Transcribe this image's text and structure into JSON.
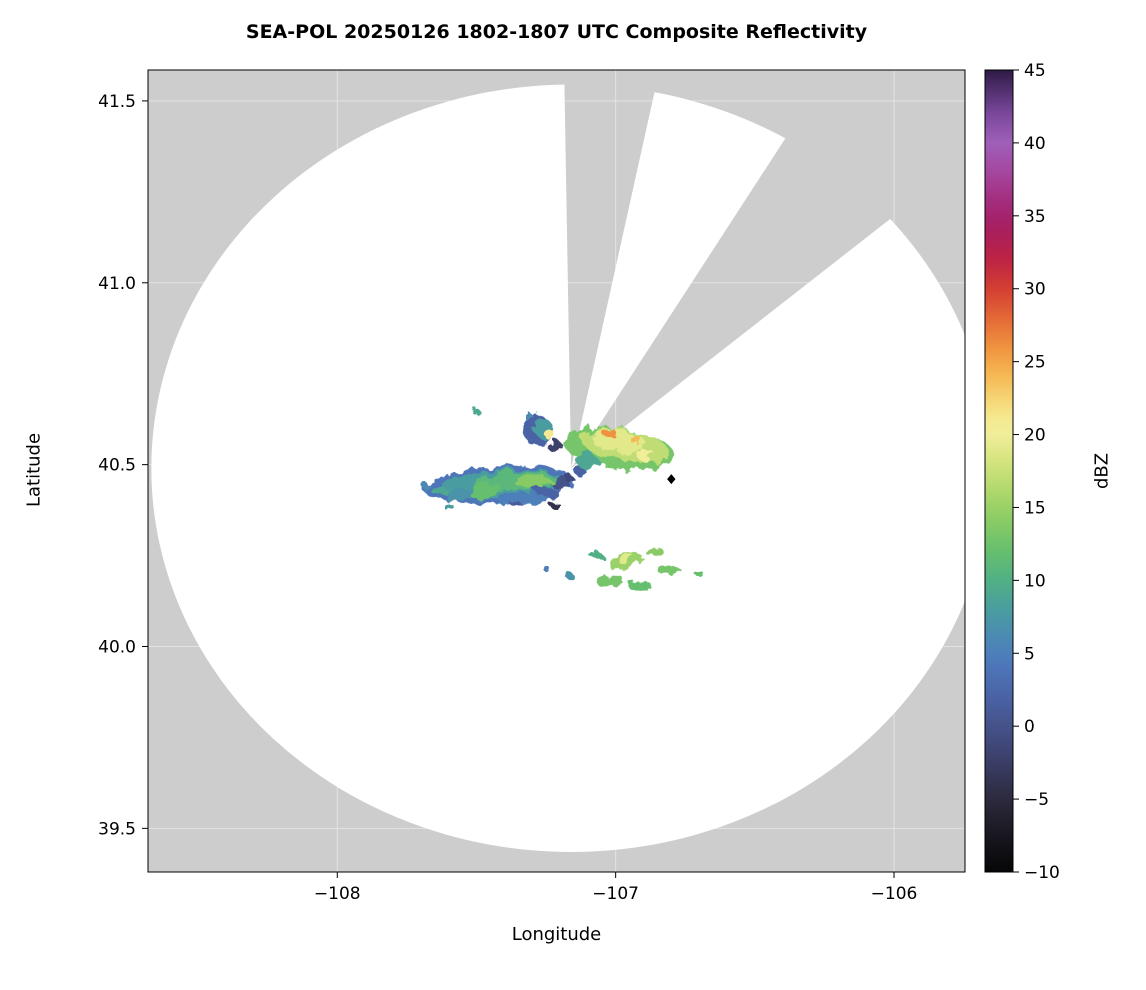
{
  "figure": {
    "title": "SEA-POL 20250126 1802-1807 UTC Composite Reflectivity",
    "xlabel": "Longitude",
    "ylabel": "Latitude",
    "colorbar_label": "dBZ"
  },
  "chart_data": {
    "type": "heatmap",
    "title": "SEA-POL 20250126 1802-1807 UTC Composite Reflectivity",
    "xlabel": "Longitude",
    "ylabel": "Latitude",
    "xlim": [
      -108.68,
      -105.745
    ],
    "ylim": [
      39.38,
      41.585
    ],
    "xticks": [
      -108,
      -107,
      -106
    ],
    "yticks": [
      39.5,
      40.0,
      40.5,
      41.0,
      41.5
    ],
    "grid": true,
    "colors": {
      "outside_range": "#cdcdcd",
      "coverage": "#ffffff",
      "frame": "#000000",
      "gridline": "#ffffff"
    },
    "colorbar": {
      "label": "dBZ",
      "min": -10,
      "max": 45,
      "ticks": [
        -10,
        -5,
        0,
        5,
        10,
        15,
        20,
        25,
        30,
        35,
        40,
        45
      ],
      "stops": [
        [
          -10,
          "#060607"
        ],
        [
          -8,
          "#15131a"
        ],
        [
          -6,
          "#252230"
        ],
        [
          -5,
          "#2c2a3e"
        ],
        [
          -4,
          "#32324e"
        ],
        [
          -2,
          "#3d426d"
        ],
        [
          0,
          "#45528a"
        ],
        [
          2,
          "#4a63a5"
        ],
        [
          4,
          "#4d75b8"
        ],
        [
          5,
          "#4d7fba"
        ],
        [
          6,
          "#4b89b4"
        ],
        [
          8,
          "#4a9da0"
        ],
        [
          10,
          "#51b085"
        ],
        [
          12,
          "#66bf6e"
        ],
        [
          14,
          "#88cb66"
        ],
        [
          15,
          "#9ad167"
        ],
        [
          16,
          "#add76b"
        ],
        [
          18,
          "#d2e37c"
        ],
        [
          20,
          "#f0ee9a"
        ],
        [
          21,
          "#f5ea93"
        ],
        [
          22,
          "#f6dc7d"
        ],
        [
          24,
          "#f5b955"
        ],
        [
          25,
          "#f3a648"
        ],
        [
          26,
          "#ef923f"
        ],
        [
          28,
          "#e46837"
        ],
        [
          30,
          "#d33f33"
        ],
        [
          32,
          "#bd2343"
        ],
        [
          34,
          "#a81f5e"
        ],
        [
          35,
          "#a4246d"
        ],
        [
          36,
          "#a32d7d"
        ],
        [
          38,
          "#a5479f"
        ],
        [
          40,
          "#9f5fb9"
        ],
        [
          42,
          "#7a489b"
        ],
        [
          44,
          "#482a64"
        ],
        [
          45,
          "#2e1a44"
        ]
      ]
    },
    "radar": {
      "center_lon": -107.16,
      "center_lat": 40.49,
      "range_lon_deg": 1.508,
      "range_lat_deg": 1.055,
      "blocked_sectors_deg": [
        [
          -1,
          12.5
        ],
        [
          33,
          52
        ]
      ]
    },
    "marker": {
      "lon": -106.8,
      "lat": 40.46,
      "shape": "diamond",
      "color": "#000000"
    },
    "echoes": [
      [
        -107.42,
        40.445,
        0.27,
        0.05,
        -4,
        4
      ],
      [
        -107.41,
        40.447,
        0.22,
        0.038,
        -4,
        8
      ],
      [
        -107.36,
        40.452,
        0.15,
        0.028,
        -4,
        11
      ],
      [
        -107.3,
        40.455,
        0.07,
        0.018,
        0,
        14
      ],
      [
        -107.47,
        40.428,
        0.06,
        0.02,
        -10,
        12
      ],
      [
        -107.56,
        40.415,
        0.05,
        0.016,
        -15,
        7
      ],
      [
        -107.63,
        40.425,
        0.03,
        0.012,
        0,
        9
      ],
      [
        -107.68,
        40.44,
        0.015,
        0.008,
        0,
        6
      ],
      [
        -107.25,
        40.425,
        0.05,
        0.014,
        10,
        2
      ],
      [
        -107.2,
        40.452,
        0.035,
        0.02,
        0,
        0
      ],
      [
        -107.33,
        40.403,
        0.09,
        0.013,
        -5,
        5
      ],
      [
        -107.6,
        40.385,
        0.02,
        0.008,
        0,
        8
      ],
      [
        -107.22,
        40.39,
        0.02,
        0.008,
        0,
        -4
      ],
      [
        -107.36,
        40.393,
        0.02,
        0.007,
        0,
        1
      ],
      [
        -107.17,
        40.463,
        0.018,
        0.01,
        0,
        -1
      ],
      [
        -107.28,
        40.595,
        0.055,
        0.04,
        20,
        2
      ],
      [
        -107.26,
        40.6,
        0.035,
        0.025,
        0,
        8
      ],
      [
        -107.24,
        40.585,
        0.02,
        0.013,
        0,
        21
      ],
      [
        -107.31,
        40.63,
        0.015,
        0.01,
        0,
        6
      ],
      [
        -107.5,
        40.645,
        0.015,
        0.008,
        0,
        9
      ],
      [
        -107.22,
        40.552,
        0.025,
        0.018,
        0,
        -2
      ],
      [
        -106.99,
        40.545,
        0.2,
        0.055,
        7,
        13
      ],
      [
        -106.97,
        40.555,
        0.155,
        0.042,
        7,
        17
      ],
      [
        -106.99,
        40.565,
        0.1,
        0.03,
        7,
        19
      ],
      [
        -107.02,
        40.585,
        0.025,
        0.013,
        0,
        26
      ],
      [
        -106.93,
        40.57,
        0.02,
        0.012,
        0,
        24
      ],
      [
        -106.89,
        40.525,
        0.035,
        0.015,
        0,
        20
      ],
      [
        -106.855,
        40.52,
        0.025,
        0.012,
        0,
        17
      ],
      [
        -107.1,
        40.51,
        0.045,
        0.025,
        15,
        9
      ],
      [
        -107.13,
        40.482,
        0.02,
        0.012,
        0,
        2
      ],
      [
        -106.97,
        40.235,
        0.065,
        0.018,
        -18,
        15
      ],
      [
        -106.96,
        40.24,
        0.03,
        0.012,
        -18,
        19
      ],
      [
        -106.86,
        40.26,
        0.03,
        0.012,
        -10,
        14
      ],
      [
        -106.81,
        40.21,
        0.035,
        0.012,
        -10,
        13
      ],
      [
        -107.02,
        40.18,
        0.05,
        0.014,
        -8,
        13
      ],
      [
        -107.07,
        40.25,
        0.022,
        0.012,
        0,
        10
      ],
      [
        -107.16,
        40.19,
        0.015,
        0.009,
        0,
        7
      ],
      [
        -107.25,
        40.215,
        0.012,
        0.008,
        0,
        5
      ],
      [
        -106.91,
        40.165,
        0.04,
        0.012,
        -8,
        12
      ],
      [
        -106.7,
        40.2,
        0.015,
        0.009,
        0,
        12
      ]
    ]
  }
}
